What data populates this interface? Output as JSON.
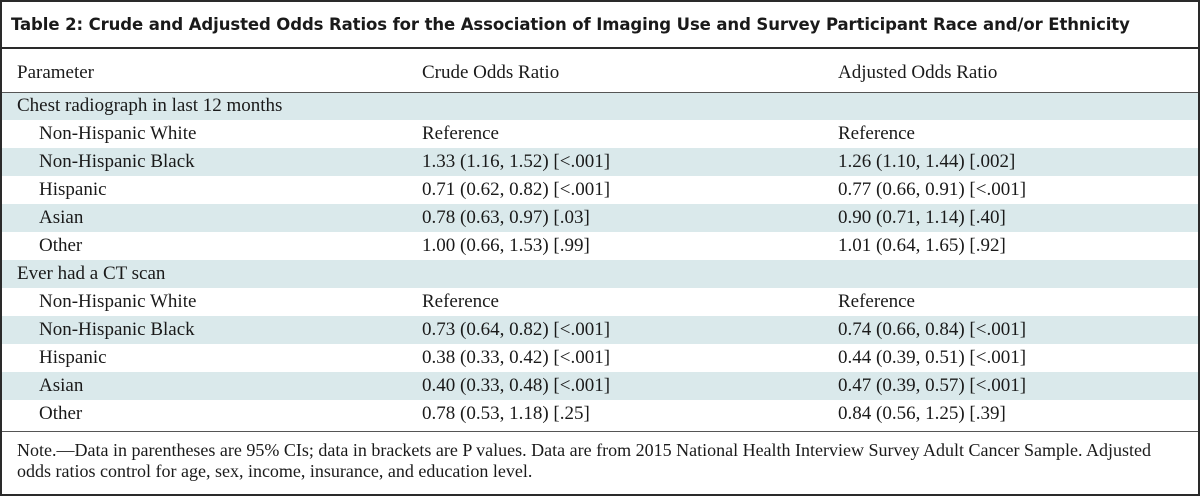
{
  "title": "Table 2: Crude and Adjusted Odds Ratios for the Association of Imaging Use and Survey Participant Race and/or Ethnicity",
  "columns": [
    "Parameter",
    "Crude Odds Ratio",
    "Adjusted Odds Ratio"
  ],
  "sections": [
    {
      "label": "Chest radiograph in last 12 months",
      "rows": [
        {
          "parameter": "Non-Hispanic White",
          "crude": "Reference",
          "adjusted": "Reference"
        },
        {
          "parameter": "Non-Hispanic Black",
          "crude": "1.33 (1.16, 1.52) [<.001]",
          "adjusted": "1.26 (1.10, 1.44) [.002]"
        },
        {
          "parameter": "Hispanic",
          "crude": "0.71 (0.62, 0.82) [<.001]",
          "adjusted": "0.77 (0.66, 0.91) [<.001]"
        },
        {
          "parameter": "Asian",
          "crude": "0.78 (0.63, 0.97) [.03]",
          "adjusted": "0.90 (0.71, 1.14) [.40]"
        },
        {
          "parameter": "Other",
          "crude": "1.00 (0.66, 1.53) [.99]",
          "adjusted": "1.01 (0.64, 1.65) [.92]"
        }
      ]
    },
    {
      "label": "Ever had a CT scan",
      "rows": [
        {
          "parameter": "Non-Hispanic White",
          "crude": "Reference",
          "adjusted": "Reference"
        },
        {
          "parameter": "Non-Hispanic Black",
          "crude": "0.73 (0.64, 0.82) [<.001]",
          "adjusted": "0.74 (0.66, 0.84) [<.001]"
        },
        {
          "parameter": "Hispanic",
          "crude": "0.38 (0.33, 0.42) [<.001]",
          "adjusted": "0.44 (0.39, 0.51) [<.001]"
        },
        {
          "parameter": "Asian",
          "crude": "0.40 (0.33, 0.48) [<.001]",
          "adjusted": "0.47 (0.39, 0.57) [<.001]"
        },
        {
          "parameter": "Other",
          "crude": "0.78 (0.53, 1.18) [.25]",
          "adjusted": "0.84 (0.56, 1.25) [.39]"
        }
      ]
    }
  ],
  "note": "Note.—Data in parentheses are 95% CIs; data in brackets are P values. Data are from 2015 National Health Interview Survey Adult Cancer Sample. Adjusted odds ratios control for age, sex, income, insurance, and education level.",
  "colors": {
    "shade": "#dae9eb",
    "rule": "#2a2a2a"
  }
}
